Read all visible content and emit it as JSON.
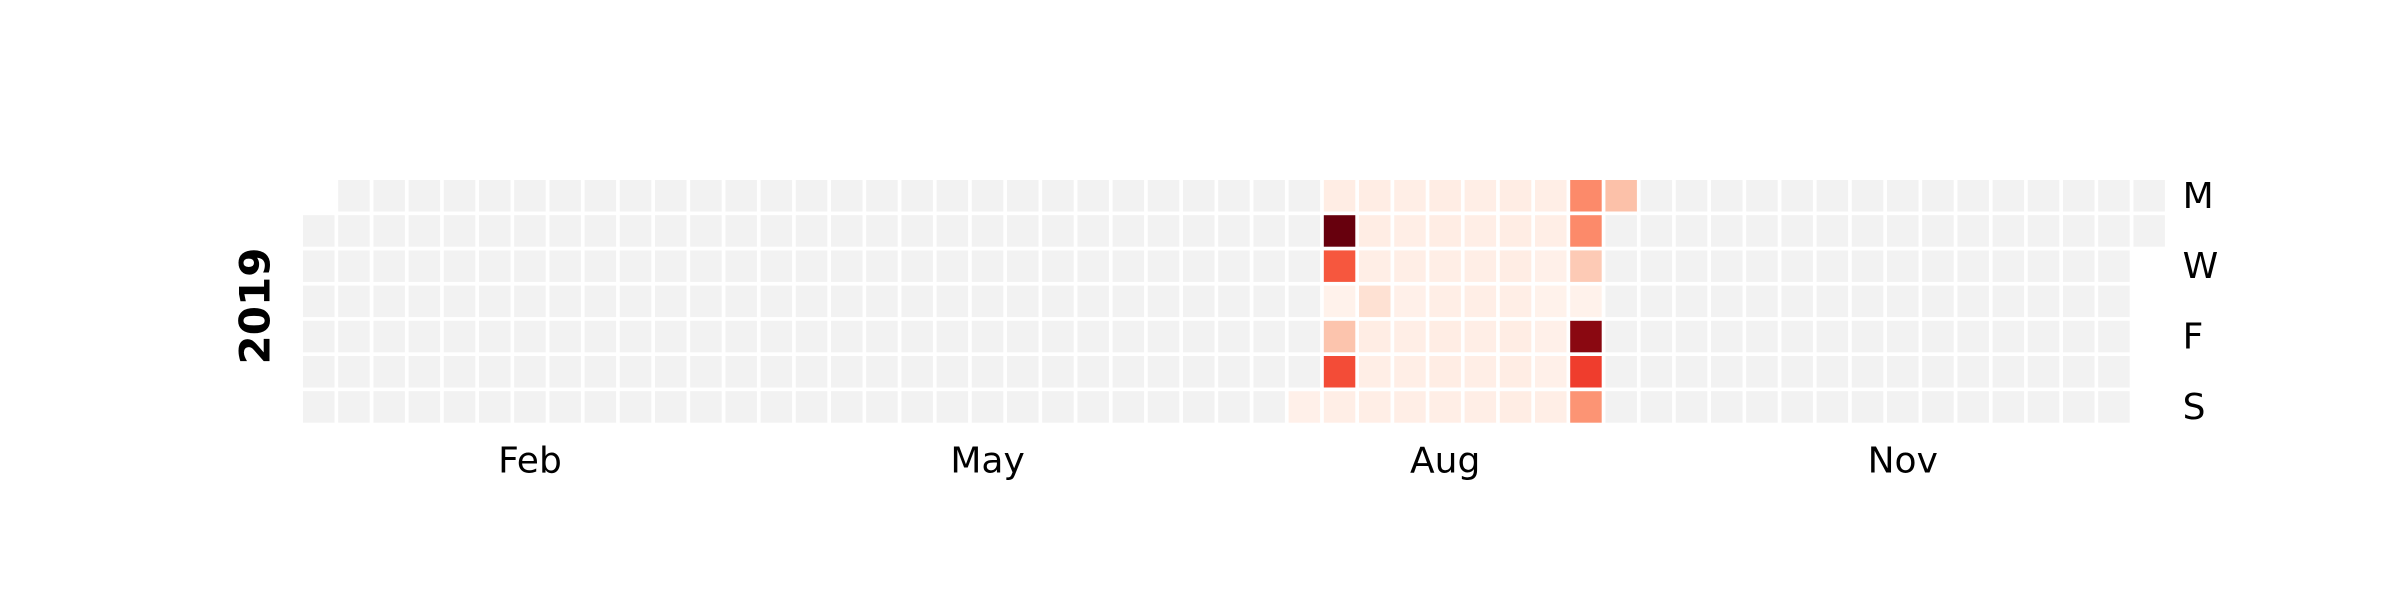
{
  "chart_data": {
    "type": "calendar",
    "year": "2019",
    "colormap": "Reds",
    "clim": [
      0,
      100
    ],
    "empty_color": "#f2f2f2",
    "days": [
      "M",
      null,
      "W",
      null,
      "F",
      null,
      "S"
    ],
    "xticks": [
      {
        "value": 2,
        "label": "Feb"
      },
      {
        "value": 5,
        "label": "May"
      },
      {
        "value": 8,
        "label": "Aug"
      },
      {
        "value": 11,
        "label": "Nov"
      }
    ],
    "values": [
      null,
      null,
      null,
      null,
      null,
      null,
      null,
      null,
      null,
      null,
      null,
      null,
      null,
      null,
      null,
      null,
      null,
      null,
      null,
      null,
      null,
      null,
      null,
      null,
      null,
      null,
      null,
      null,
      null,
      null,
      null,
      null,
      null,
      null,
      null,
      null,
      null,
      null,
      null,
      null,
      null,
      null,
      null,
      null,
      null,
      null,
      null,
      null,
      null,
      null,
      null,
      null,
      null,
      null,
      null,
      null,
      null,
      null,
      null,
      null,
      null,
      null,
      null,
      null,
      null,
      null,
      null,
      null,
      null,
      null,
      null,
      null,
      null,
      null,
      null,
      null,
      null,
      null,
      null,
      null,
      null,
      null,
      null,
      null,
      null,
      null,
      null,
      null,
      null,
      null,
      null,
      null,
      null,
      null,
      null,
      null,
      null,
      null,
      null,
      null,
      null,
      null,
      null,
      null,
      null,
      null,
      null,
      null,
      null,
      null,
      null,
      null,
      null,
      null,
      null,
      null,
      null,
      null,
      null,
      null,
      null,
      null,
      null,
      null,
      null,
      null,
      null,
      null,
      null,
      null,
      null,
      null,
      null,
      null,
      null,
      null,
      null,
      null,
      null,
      null,
      null,
      null,
      null,
      null,
      null,
      null,
      null,
      null,
      null,
      null,
      null,
      null,
      null,
      null,
      null,
      null,
      null,
      null,
      null,
      null,
      null,
      null,
      null,
      null,
      null,
      null,
      null,
      null,
      null,
      null,
      null,
      null,
      null,
      null,
      null,
      null,
      null,
      null,
      null,
      null,
      null,
      null,
      null,
      null,
      null,
      null,
      null,
      null,
      null,
      null,
      null,
      null,
      null,
      null,
      null,
      null,
      null,
      null,
      null,
      null,
      null,
      3,
      5,
      100,
      55,
      2,
      22,
      58,
      4,
      5,
      5,
      4,
      12,
      5,
      4,
      4,
      4,
      4,
      4,
      3,
      4,
      4,
      4,
      5,
      5,
      4,
      4,
      5,
      5,
      4,
      4,
      4,
      4,
      4,
      4,
      4,
      4,
      5,
      5,
      5,
      4,
      5,
      5,
      5,
      4,
      4,
      3,
      2,
      3,
      3,
      4,
      40,
      40,
      20,
      2,
      93,
      62,
      37,
      23,
      null,
      null,
      null,
      null,
      null,
      null,
      null,
      null,
      null,
      null,
      null,
      null,
      null,
      null,
      null,
      null,
      null,
      null,
      null,
      null,
      null,
      null,
      null,
      null,
      null,
      null,
      null,
      null,
      null,
      null,
      null,
      null,
      null,
      null,
      null,
      null,
      null,
      null,
      null,
      null,
      null,
      null,
      null,
      null,
      null,
      null,
      null,
      null,
      null,
      null,
      null,
      null,
      null,
      null,
      null,
      null,
      null,
      null,
      null,
      null,
      null,
      null,
      null,
      null,
      null,
      null,
      null,
      null,
      null,
      null,
      null,
      null,
      null,
      null,
      null,
      null,
      null,
      null,
      null,
      null,
      null,
      null,
      null,
      null,
      null,
      null,
      null,
      null,
      null,
      null,
      null,
      null,
      null,
      null,
      null,
      null,
      null,
      null,
      null,
      null,
      null,
      null,
      null,
      null,
      null,
      null
    ]
  }
}
